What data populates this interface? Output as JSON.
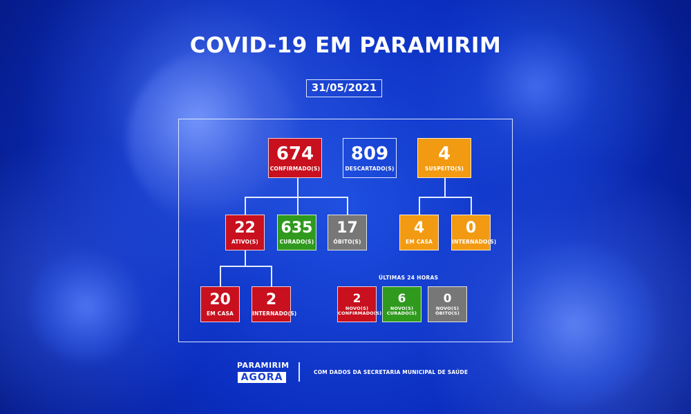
{
  "title": "COVID-19 EM PARAMIRIM",
  "date": "31/05/2021",
  "main": {
    "confirmados": {
      "value": "674",
      "label": "CONFIRMADO(S)",
      "color": "#c8101e"
    },
    "descartados": {
      "value": "809",
      "label": "DESCARTADO(S)"
    },
    "suspeitos": {
      "value": "4",
      "label": "SUSPEITO(S)",
      "color": "#f29a12"
    }
  },
  "confirmados_breakdown": {
    "ativos": {
      "value": "22",
      "label": "ATIVO(S)"
    },
    "curados": {
      "value": "635",
      "label": "CURADO(S)",
      "color": "#2f9a1d"
    },
    "obitos": {
      "value": "17",
      "label": "ÓBITO(S)",
      "color": "#777777"
    }
  },
  "ativos_breakdown": {
    "em_casa": {
      "value": "20",
      "label": "EM CASA"
    },
    "internados": {
      "value": "2",
      "label": "INTERNADO(S)"
    }
  },
  "suspeitos_breakdown": {
    "em_casa": {
      "value": "4",
      "label": "EM CASA"
    },
    "internados": {
      "value": "0",
      "label": "INTERNADO(S)"
    }
  },
  "ultimas_24h": {
    "heading": "ÚLTIMAS 24 HORAS",
    "novos_confirmados": {
      "value": "2",
      "label_line1": "NOVO(S)",
      "label_line2": "CONFIRMADO(S)"
    },
    "novos_curados": {
      "value": "6",
      "label_line1": "NOVO(S)",
      "label_line2": "CURADO(S)"
    },
    "novos_obitos": {
      "value": "0",
      "label_line1": "NOVO(S)",
      "label_line2": "ÓBITO(S)"
    }
  },
  "footer": {
    "logo_top": "PARAMIRIM",
    "logo_bottom": "AGORA",
    "source": "COM DADOS DA SECRETARIA MUNICIPAL DE SAÚDE"
  }
}
